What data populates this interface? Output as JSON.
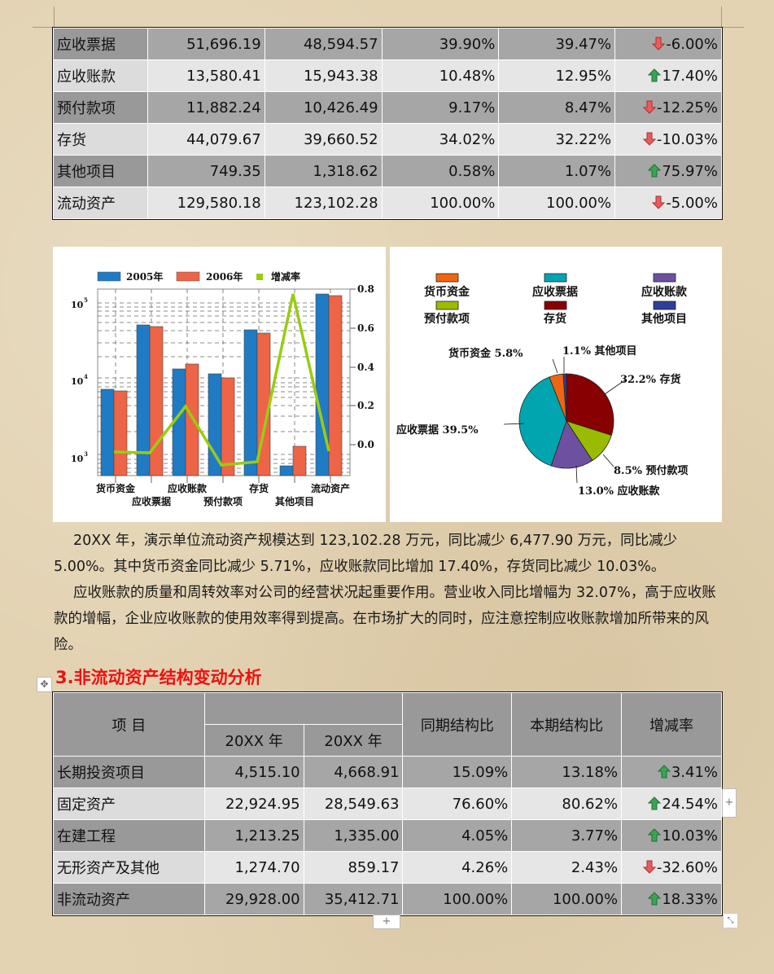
{
  "table1": {
    "rows": [
      {
        "name": "应收票据",
        "v2005": "51,696.19",
        "v2006": "48,594.57",
        "prev_ratio": "39.90%",
        "cur_ratio": "39.47%",
        "change": "-6.00%",
        "dir": "down"
      },
      {
        "name": "应收账款",
        "v2005": "13,580.41",
        "v2006": "15,943.38",
        "prev_ratio": "10.48%",
        "cur_ratio": "12.95%",
        "change": "17.40%",
        "dir": "up"
      },
      {
        "name": "预付款项",
        "v2005": "11,882.24",
        "v2006": "10,426.49",
        "prev_ratio": "9.17%",
        "cur_ratio": "8.47%",
        "change": "-12.25%",
        "dir": "down"
      },
      {
        "name": "存货",
        "v2005": "44,079.67",
        "v2006": "39,660.52",
        "prev_ratio": "34.02%",
        "cur_ratio": "32.22%",
        "change": "-10.03%",
        "dir": "down"
      },
      {
        "name": "其他项目",
        "v2005": "749.35",
        "v2006": "1,318.62",
        "prev_ratio": "0.58%",
        "cur_ratio": "1.07%",
        "change": "75.97%",
        "dir": "up"
      },
      {
        "name": "流动资产",
        "v2005": "129,580.18",
        "v2006": "123,102.28",
        "prev_ratio": "100.00%",
        "cur_ratio": "100.00%",
        "change": "-5.00%",
        "dir": "down"
      }
    ]
  },
  "chart_data": [
    {
      "type": "bar",
      "title": "",
      "categories": [
        "货币资金",
        "应收票据",
        "应收账款",
        "预付款项",
        "存货",
        "其他项目",
        "流动资产"
      ],
      "series": [
        {
          "name": "2005年",
          "color": "#1f7bc4",
          "values": [
            7500,
            51696.19,
            13580.41,
            11882.24,
            44079.67,
            749.35,
            129580.18
          ]
        },
        {
          "name": "2006年",
          "color": "#ee6446",
          "values": [
            7070,
            48594.57,
            15943.38,
            10426.49,
            39660.52,
            1318.62,
            123102.28
          ]
        },
        {
          "name": "增减率",
          "color": "#99cc11",
          "type": "line",
          "axis": "right",
          "values": [
            -0.0571,
            -0.06,
            0.174,
            -0.1225,
            -0.1003,
            0.7597,
            -0.05
          ]
        }
      ],
      "y_left": {
        "scale": "log",
        "ticks": [
          "10³",
          "10⁴",
          "10⁵"
        ],
        "range": [
          600,
          150000
        ]
      },
      "y_right": {
        "ticks": [
          "0.0",
          "0.2",
          "0.4",
          "0.6",
          "0.8"
        ],
        "range": [
          -0.2,
          0.8
        ]
      },
      "legend_position": "top",
      "grid": true
    },
    {
      "type": "pie",
      "title": "",
      "legend": [
        {
          "label": "货币资金",
          "color": "#ee6611"
        },
        {
          "label": "应收票据",
          "color": "#00a5b0"
        },
        {
          "label": "应收账款",
          "color": "#6e50a0"
        },
        {
          "label": "预付款项",
          "color": "#99bb00"
        },
        {
          "label": "存货",
          "color": "#880000"
        },
        {
          "label": "其他项目",
          "color": "#2e3f99"
        }
      ],
      "slices": [
        {
          "label": "其他项目",
          "value": 1.1,
          "text": "1.1% 其他项目",
          "color": "#2e3f99"
        },
        {
          "label": "存货",
          "value": 32.2,
          "text": "32.2% 存货",
          "color": "#880000"
        },
        {
          "label": "预付款项",
          "value": 8.5,
          "text": "8.5% 预付款项",
          "color": "#99bb00"
        },
        {
          "label": "应收账款",
          "value": 13.0,
          "text": "13.0% 应收账款",
          "color": "#6e50a0"
        },
        {
          "label": "应收票据",
          "value": 39.5,
          "text": "应收票据 39.5%",
          "color": "#00a5b0"
        },
        {
          "label": "货币资金",
          "value": 5.8,
          "text": "货币资金 5.8%",
          "color": "#ee6611"
        }
      ]
    }
  ],
  "bar_chart": {
    "legend": [
      "2005年",
      "2006年",
      "增减率"
    ],
    "y_left": [
      "10",
      "10",
      "10"
    ],
    "y_left_exp": [
      "5",
      "4",
      "3"
    ],
    "y_right": [
      "0.8",
      "0.6",
      "0.4",
      "0.2",
      "0.0"
    ],
    "x_labels_top": [
      "货币资金",
      "应收账款",
      "存货",
      "流动资产"
    ],
    "x_labels_bottom": [
      "应收票据",
      "预付款项",
      "其他项目"
    ]
  },
  "pie_chart": {
    "legend": [
      "货币资金",
      "应收票据",
      "应收账款",
      "预付款项",
      "存货",
      "其他项目"
    ],
    "labels": {
      "cash": "货币资金 5.8%",
      "other": "1.1% 其他项目",
      "inventory": "32.2% 存货",
      "notes": "应收票据 39.5%",
      "prepaid": "8.5% 预付款项",
      "receivable": "13.0% 应收账款"
    }
  },
  "paragraphs": [
    "20XX 年，演示单位流动资产规模达到 123,102.28 万元，同比减少 6,477.90 万元，同比减少 5.00%。其中货币资金同比减少 5.71%，应收账款同比增加 17.40%，存货同比减少 10.03%。",
    "应收账款的质量和周转效率对公司的经营状况起重要作用。营业收入同比增幅为 32.07%，高于应收账款的增幅，企业应收账款的使用效率得到提高。在市场扩大的同时，应注意控制应收账款增加所带来的风险。"
  ],
  "section_heading": "3.非流动资产结构变动分析",
  "table2": {
    "headers": {
      "item": "项  目",
      "year1": "20XX 年",
      "year2": "20XX 年",
      "prev_ratio": "同期结构比",
      "cur_ratio": "本期结构比",
      "change": "增减率"
    },
    "rows": [
      {
        "name": "长期投资项目",
        "v1": "4,515.10",
        "v2": "4,668.91",
        "prev_ratio": "15.09%",
        "cur_ratio": "13.18%",
        "change": "3.41%",
        "dir": "up"
      },
      {
        "name": "固定资产",
        "v1": "22,924.95",
        "v2": "28,549.63",
        "prev_ratio": "76.60%",
        "cur_ratio": "80.62%",
        "change": "24.54%",
        "dir": "up"
      },
      {
        "name": "在建工程",
        "v1": "1,213.25",
        "v2": "1,335.00",
        "prev_ratio": "4.05%",
        "cur_ratio": "3.77%",
        "change": "10.03%",
        "dir": "up"
      },
      {
        "name": "无形资产及其他",
        "v1": "1,274.70",
        "v2": "859.17",
        "prev_ratio": "4.26%",
        "cur_ratio": "2.43%",
        "change": "-32.60%",
        "dir": "down"
      },
      {
        "name": "非流动资产",
        "v1": "29,928.00",
        "v2": "35,412.71",
        "prev_ratio": "100.00%",
        "cur_ratio": "100.00%",
        "change": "18.33%",
        "dir": "up"
      }
    ]
  },
  "controls": {
    "add_row": "+",
    "add_col": "+",
    "move": "✥",
    "resize": "⤡"
  }
}
